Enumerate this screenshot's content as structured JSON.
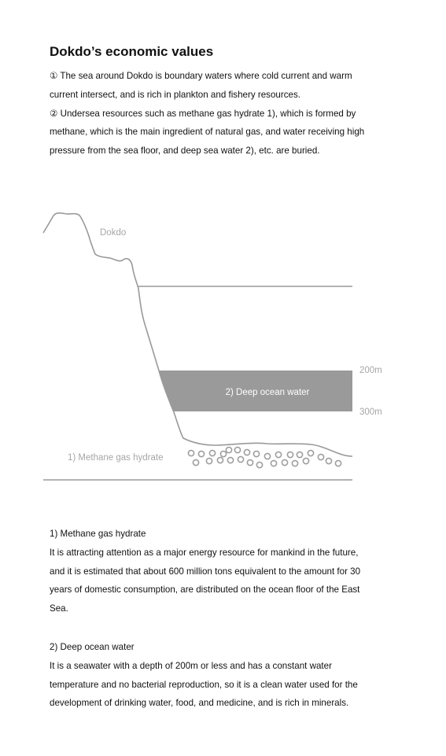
{
  "title": "Dokdo’s economic values",
  "intro": {
    "line1": "① The sea around Dokdo is boundary waters where cold current and warm",
    "line2": "current intersect, and is rich in plankton and fishery resources.",
    "line3": "② Undersea resources such as methane gas hydrate 1), which is formed by",
    "line4": "methane,  which is the main ingredient of natural gas, and water receiving high",
    "line5": "pressure from the sea floor, and deep sea water 2), etc.  are buried."
  },
  "diagram": {
    "island_label": "Dokdo",
    "band_label": "2) Deep ocean water",
    "depth_top": "200m",
    "depth_bottom": "300m",
    "hydrate_label": "1) Methane gas hydrate",
    "colors": {
      "outline": "#999999",
      "band": "#9a9a9a",
      "label": "#a6a6a6",
      "band_text": "#ffffff"
    }
  },
  "notes": [
    {
      "heading": "1) Methane gas hydrate",
      "lines": [
        "It is attracting attention as a major energy resource for mankind in the  future,",
        "and it is estimated that about 600 million tons equivalent to the amount   for 30",
        "years of domestic consumption, are distributed on the ocean floor of the  East",
        "Sea."
      ]
    },
    {
      "heading": "2) Deep ocean water",
      "lines": [
        "It is a seawater with a depth  of 200m or less and has a constant water",
        "temperature  and no bacterial reproduction, so it is a clean water used for the",
        "development  of drinking water, food, and medicine, and is rich in minerals."
      ]
    }
  ]
}
